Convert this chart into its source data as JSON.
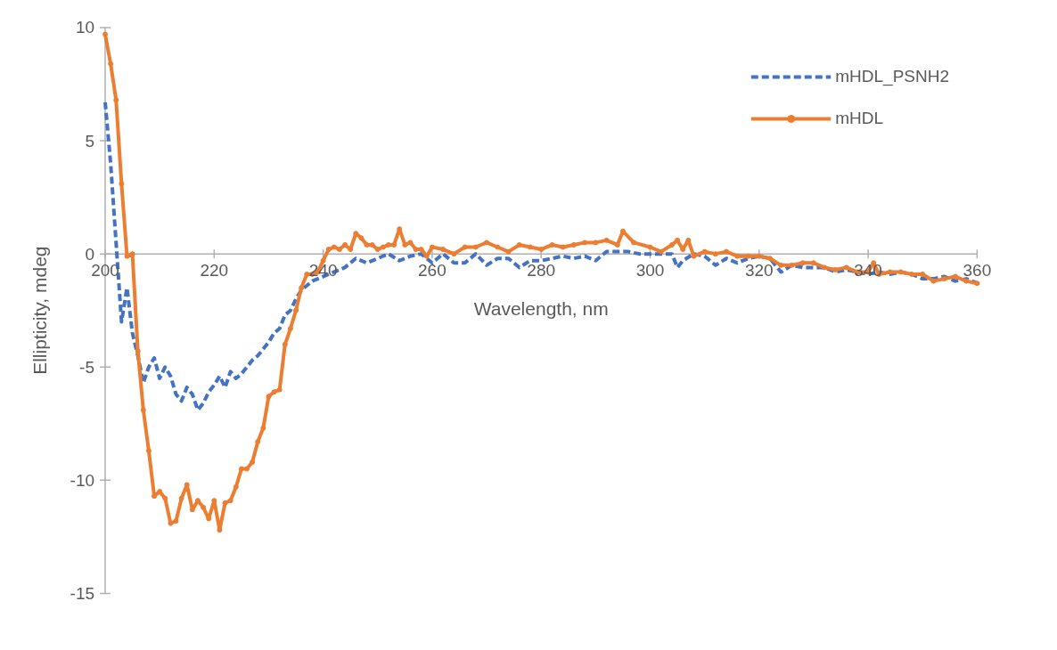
{
  "chart_data": {
    "type": "line",
    "xlabel": "Wavelength, nm",
    "ylabel": "Ellipticity, mdeg",
    "xlim": [
      200,
      360
    ],
    "ylim": [
      -15,
      10
    ],
    "xticks": [
      200,
      220,
      240,
      260,
      280,
      300,
      320,
      340,
      360
    ],
    "yticks": [
      -15,
      -10,
      -5,
      0,
      5,
      10
    ],
    "grid": false,
    "legend": "top right",
    "series": [
      {
        "name": "mHDL_PSNH2",
        "color": "#4472c4",
        "line_style": "dashed",
        "marker": "none",
        "x": [
          200,
          201,
          202,
          203,
          204,
          205,
          206,
          207,
          208,
          209,
          210,
          211,
          212,
          213,
          214,
          215,
          216,
          217,
          218,
          219,
          220,
          221,
          222,
          223,
          224,
          225,
          226,
          227,
          228,
          229,
          230,
          231,
          232,
          233,
          234,
          235,
          236,
          237,
          238,
          240,
          242,
          244,
          246,
          248,
          250,
          252,
          254,
          256,
          258,
          260,
          262,
          264,
          266,
          268,
          270,
          272,
          274,
          276,
          278,
          280,
          282,
          284,
          286,
          288,
          290,
          292,
          294,
          296,
          298,
          300,
          302,
          304,
          305,
          306,
          308,
          310,
          312,
          314,
          316,
          318,
          320,
          322,
          324,
          326,
          328,
          330,
          332,
          334,
          336,
          338,
          340,
          342,
          344,
          346,
          348,
          350,
          352,
          354,
          356,
          358,
          360
        ],
        "values": [
          6.7,
          4,
          0.5,
          -3.0,
          -1.5,
          -3.5,
          -4.5,
          -5.7,
          -5.0,
          -4.6,
          -5.5,
          -5.0,
          -5.4,
          -6.2,
          -6.5,
          -5.9,
          -6.2,
          -6.9,
          -6.6,
          -6.1,
          -5.8,
          -5.4,
          -5.9,
          -5.2,
          -5.5,
          -5.3,
          -5.0,
          -4.7,
          -4.5,
          -4.2,
          -3.9,
          -3.5,
          -3.3,
          -2.7,
          -2.5,
          -2.0,
          -1.6,
          -1.4,
          -1.2,
          -1.0,
          -0.8,
          -0.6,
          -0.2,
          -0.4,
          -0.2,
          0,
          -0.3,
          -0.1,
          0,
          -0.4,
          0,
          -0.4,
          -0.4,
          0.0,
          -0.5,
          -0.2,
          -0.2,
          -0.6,
          -0.3,
          -0.3,
          -0.2,
          -0.1,
          -0.2,
          -0.1,
          -0.3,
          0.1,
          0.1,
          0.1,
          0.0,
          0,
          0,
          0.0,
          -0.6,
          -0.3,
          0,
          -0.1,
          -0.5,
          -0.2,
          -0.4,
          -0.2,
          -0.1,
          -0.2,
          -0.8,
          -0.5,
          -0.6,
          -0.6,
          -0.6,
          -0.8,
          -0.7,
          -0.8,
          -0.9,
          -0.8,
          -0.9,
          -0.8,
          -0.9,
          -1.1,
          -1.1,
          -1.0,
          -1.2,
          -1.1,
          -1.3
        ]
      },
      {
        "name": "mHDL",
        "color": "#ed7d31",
        "line_style": "solid",
        "marker": "circle",
        "x": [
          200,
          201,
          202,
          203,
          204,
          205,
          206,
          207,
          208,
          209,
          210,
          211,
          212,
          213,
          214,
          215,
          216,
          217,
          218,
          219,
          220,
          221,
          222,
          223,
          224,
          225,
          226,
          227,
          228,
          229,
          230,
          231,
          232,
          233,
          234,
          235,
          236,
          237,
          238,
          239,
          240,
          241,
          242,
          243,
          244,
          245,
          246,
          247,
          248,
          249,
          250,
          251,
          252,
          253,
          254,
          255,
          256,
          257,
          258,
          259,
          260,
          262,
          264,
          266,
          268,
          270,
          272,
          274,
          276,
          278,
          280,
          282,
          284,
          286,
          288,
          290,
          292,
          294,
          295,
          297,
          300,
          302,
          304,
          305,
          306,
          307,
          308,
          310,
          312,
          314,
          316,
          318,
          320,
          322,
          324,
          326,
          328,
          330,
          332,
          334,
          336,
          338,
          340,
          341,
          342,
          344,
          346,
          348,
          350,
          352,
          354,
          356,
          358,
          360
        ],
        "values": [
          9.7,
          8.4,
          6.8,
          3.1,
          -0.1,
          0.0,
          -4.3,
          -6.9,
          -8.7,
          -10.7,
          -10.5,
          -10.8,
          -11.9,
          -11.8,
          -10.8,
          -10.2,
          -11.3,
          -10.9,
          -11.2,
          -11.7,
          -10.9,
          -12.2,
          -11.0,
          -10.9,
          -10.3,
          -9.5,
          -9.5,
          -9.2,
          -8.3,
          -7.7,
          -6.3,
          -6.1,
          -6.0,
          -4.0,
          -3.3,
          -2.5,
          -1.5,
          -0.9,
          -0.9,
          -0.8,
          -0.3,
          0.2,
          0.3,
          0.2,
          0.4,
          0.2,
          0.9,
          0.7,
          0.4,
          0.4,
          0.2,
          0.3,
          0.4,
          0.4,
          1.1,
          0.4,
          0.5,
          0.2,
          0.2,
          -0.1,
          0.3,
          0.2,
          0,
          0.3,
          0.3,
          0.5,
          0.3,
          0.1,
          0.4,
          0.3,
          0.2,
          0.4,
          0.3,
          0.4,
          0.5,
          0.5,
          0.6,
          0.4,
          1.0,
          0.5,
          0.3,
          0.1,
          0.4,
          0.6,
          0.2,
          0.6,
          -0.1,
          0.1,
          0.0,
          0.1,
          -0.1,
          -0.1,
          -0.1,
          -0.2,
          -0.5,
          -0.5,
          -0.4,
          -0.4,
          -0.6,
          -0.7,
          -0.6,
          -0.8,
          -0.8,
          -0.4,
          -0.9,
          -0.8,
          -0.8,
          -0.9,
          -0.9,
          -1.2,
          -1.1,
          -1.0,
          -1.2,
          -1.3
        ]
      }
    ]
  }
}
